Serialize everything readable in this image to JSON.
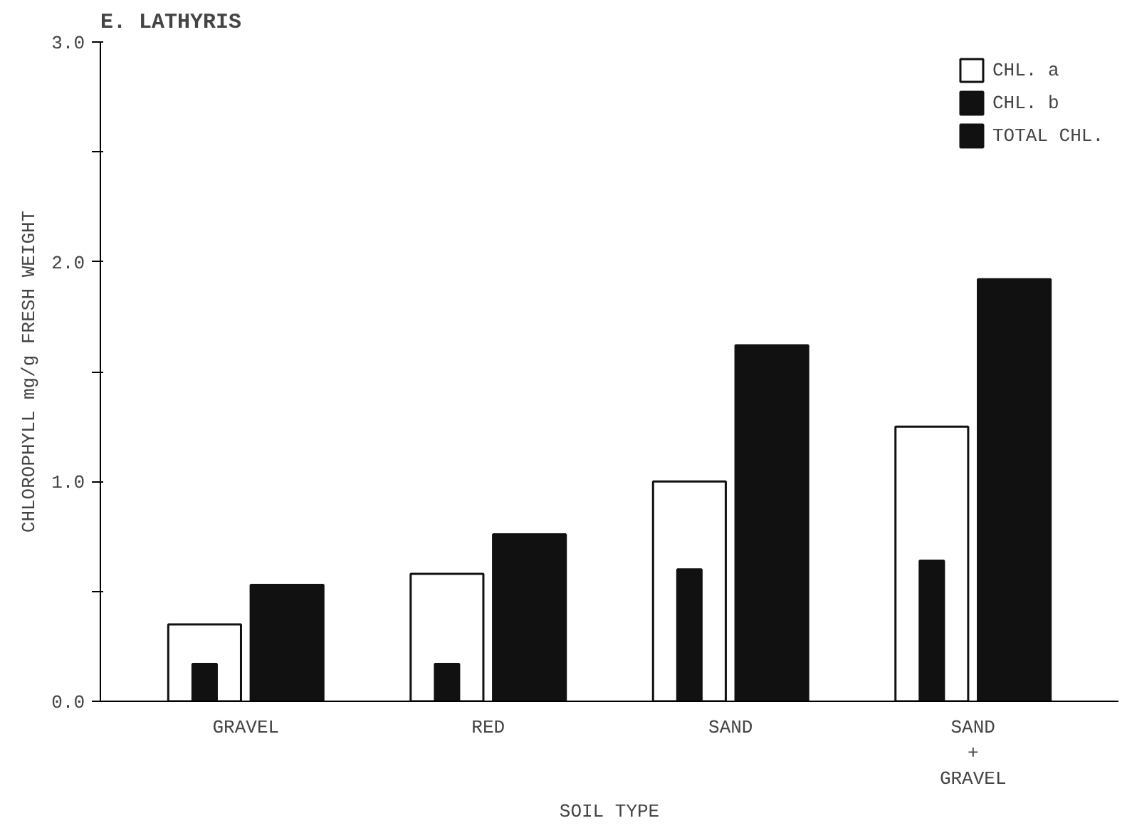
{
  "chart_data": {
    "type": "bar",
    "title": "E. LATHYRIS",
    "xlabel": "SOIL TYPE",
    "ylabel": "CHLOROPHYLL mg/g FRESH WEIGHT",
    "categories": [
      "GRAVEL",
      "RED",
      "SAND",
      "SAND\n+\nGRAVEL"
    ],
    "series": [
      {
        "name": "CHL. a",
        "color": "#ffffff",
        "values": [
          0.35,
          0.58,
          1.0,
          1.25
        ]
      },
      {
        "name": "CHL. b",
        "color": "#111111",
        "values": [
          0.17,
          0.17,
          0.6,
          0.64
        ]
      },
      {
        "name": "TOTAL CHL.",
        "color": "#111111",
        "values": [
          0.53,
          0.76,
          1.62,
          1.92
        ]
      }
    ],
    "ylim": [
      0,
      3.0
    ],
    "yticks": [
      {
        "value": 0,
        "label": "0.0"
      },
      {
        "value": 0.5,
        "label": null
      },
      {
        "value": 1,
        "label": "1.0"
      },
      {
        "value": 1.5,
        "label": null
      },
      {
        "value": 2,
        "label": "2.0"
      },
      {
        "value": 2.5,
        "label": null
      },
      {
        "value": 3,
        "label": "3.0"
      }
    ],
    "grid": false,
    "legend": "top right"
  }
}
